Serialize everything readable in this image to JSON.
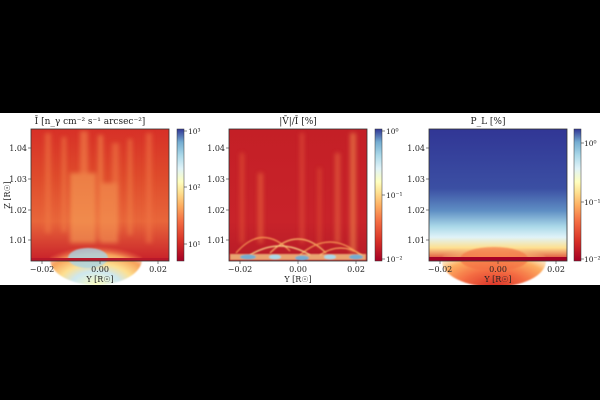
{
  "figure": {
    "panels": [
      {
        "title": "Ī [n_γ cm⁻² s⁻¹ arcsec⁻²]",
        "xlabel": "Y [R☉]",
        "ylabel": "Z [R☉]",
        "xticks": [
          "−0.02",
          "0.00",
          "0.02"
        ],
        "yticks": [
          "1.04",
          "1.03",
          "1.02",
          "1.01"
        ],
        "colorbar": {
          "scale": "log",
          "range": [
            5,
            1000
          ],
          "ticks": [
            "10³",
            "10²",
            "10¹"
          ],
          "colormap": "RdYlBu"
        }
      },
      {
        "title": "|V̄|/Ī [%]",
        "xlabel": "Y [R☉]",
        "ylabel": "",
        "xticks": [
          "−0.02",
          "0.00",
          "0.02"
        ],
        "yticks": [
          "1.04",
          "1.03",
          "1.02",
          "1.01"
        ],
        "colorbar": {
          "scale": "log",
          "range": [
            0.01,
            1
          ],
          "ticks": [
            "10⁰",
            "10⁻¹",
            "10⁻²"
          ],
          "colormap": "RdYlBu"
        }
      },
      {
        "title": "P_L [%]",
        "xlabel": "Y [R☉]",
        "ylabel": "",
        "xticks": [
          "−0.02",
          "0.00",
          "0.02"
        ],
        "yticks": [
          "1.04",
          "1.03",
          "1.02",
          "1.01"
        ],
        "colorbar": {
          "scale": "log",
          "range": [
            0.01,
            2
          ],
          "ticks": [
            "10⁰",
            "10⁻¹",
            "10⁻²"
          ],
          "colormap": "RdYlBu"
        }
      }
    ]
  }
}
